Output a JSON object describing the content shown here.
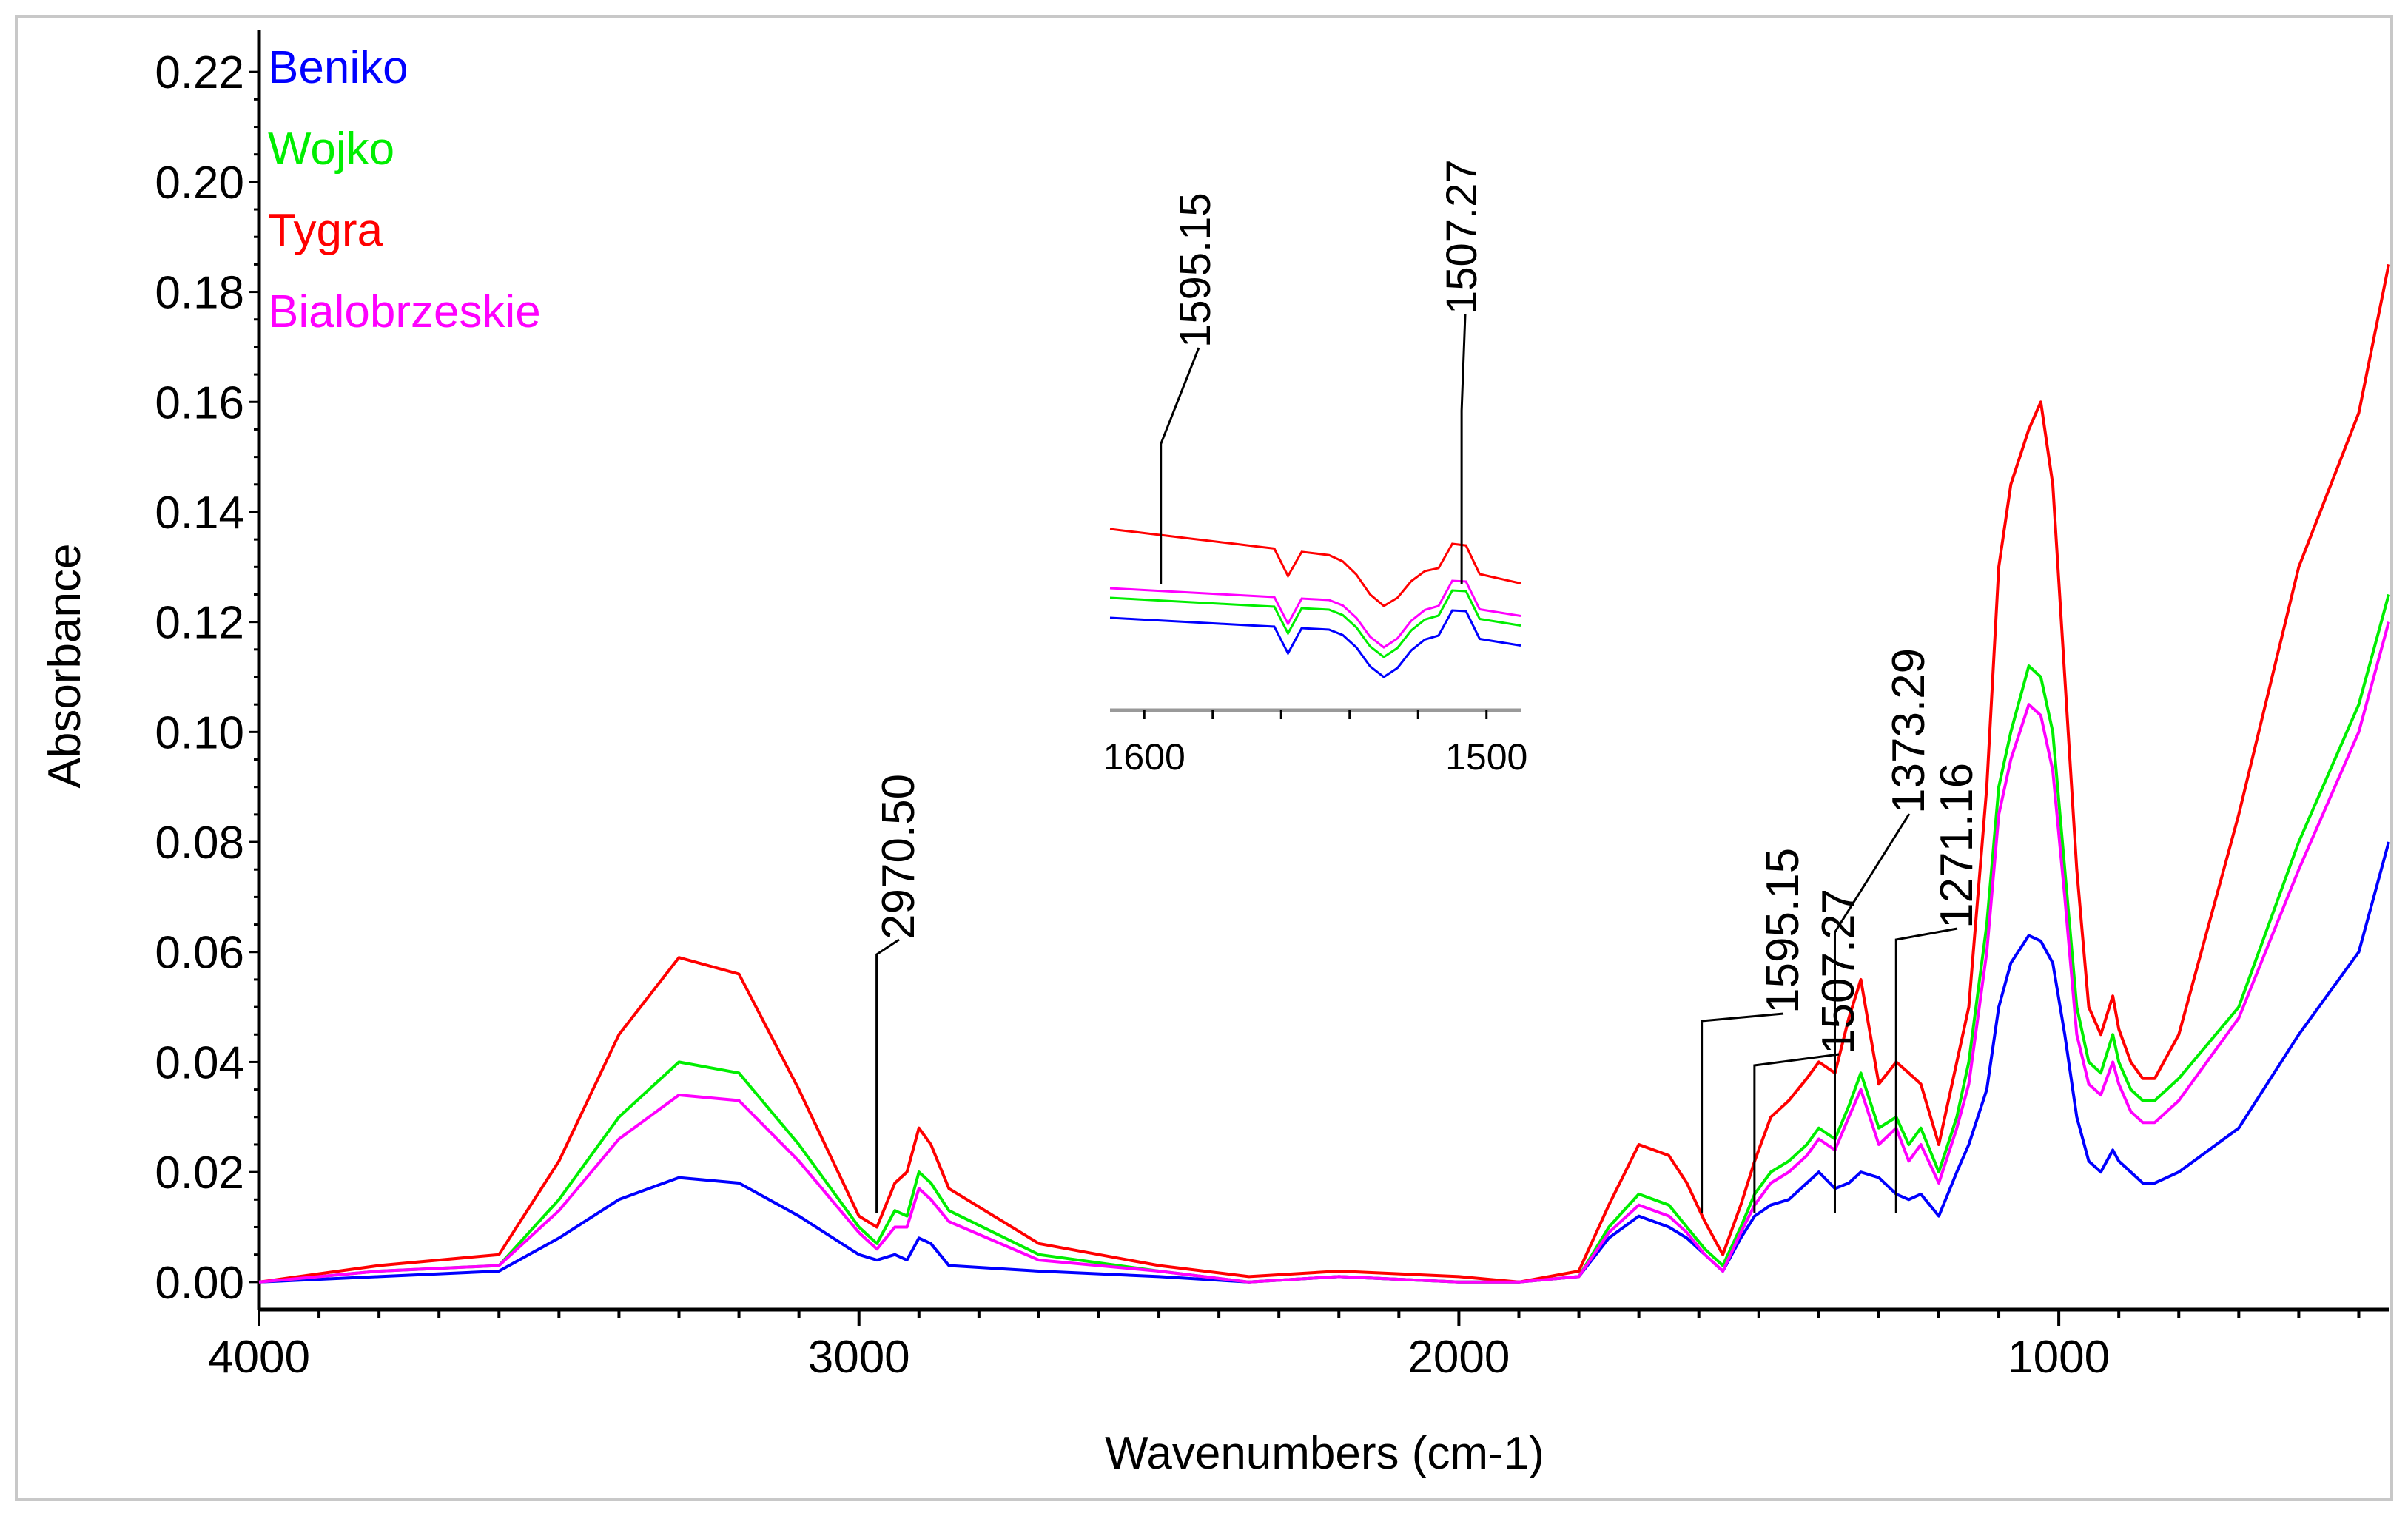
{
  "chart_data": {
    "type": "line",
    "title": "",
    "xlabel": "Wavenumbers (cm-1)",
    "ylabel": "Absorbance",
    "xlim": [
      4000,
      450
    ],
    "ylim": [
      -0.005,
      0.225
    ],
    "x_ticks": [
      4000,
      3000,
      2000,
      1000
    ],
    "x_tick_labels": [
      "4000",
      "3000",
      "2000",
      "1000"
    ],
    "y_ticks": [
      0.0,
      0.02,
      0.04,
      0.06,
      0.08,
      0.1,
      0.12,
      0.14,
      0.16,
      0.18,
      0.2,
      0.22
    ],
    "y_tick_labels": [
      "0.00",
      "0.02",
      "0.04",
      "0.06",
      "0.08",
      "0.10",
      "0.12",
      "0.14",
      "0.16",
      "0.18",
      "0.20",
      "0.22"
    ],
    "legend_position": "top-left",
    "series": [
      {
        "name": "Beniko",
        "color": "#0000ff",
        "x": [
          4000,
          3800,
          3600,
          3500,
          3400,
          3300,
          3200,
          3100,
          3000,
          2970,
          2940,
          2920,
          2900,
          2880,
          2850,
          2700,
          2500,
          2350,
          2200,
          2000,
          1900,
          1800,
          1750,
          1700,
          1650,
          1620,
          1590,
          1560,
          1530,
          1507,
          1480,
          1450,
          1420,
          1400,
          1373,
          1350,
          1330,
          1300,
          1271,
          1250,
          1230,
          1200,
          1170,
          1150,
          1120,
          1100,
          1080,
          1050,
          1030,
          1010,
          990,
          970,
          950,
          930,
          910,
          900,
          880,
          860,
          840,
          800,
          700,
          600,
          500,
          450
        ],
        "y": [
          0.0,
          0.001,
          0.002,
          0.008,
          0.015,
          0.019,
          0.018,
          0.012,
          0.005,
          0.004,
          0.005,
          0.004,
          0.008,
          0.007,
          0.003,
          0.002,
          0.001,
          0.0,
          0.001,
          0.0,
          0.0,
          0.001,
          0.008,
          0.012,
          0.01,
          0.008,
          0.005,
          0.002,
          0.008,
          0.012,
          0.014,
          0.015,
          0.018,
          0.02,
          0.017,
          0.018,
          0.02,
          0.019,
          0.016,
          0.015,
          0.016,
          0.012,
          0.02,
          0.025,
          0.035,
          0.05,
          0.058,
          0.063,
          0.062,
          0.058,
          0.045,
          0.03,
          0.022,
          0.02,
          0.024,
          0.022,
          0.02,
          0.018,
          0.018,
          0.02,
          0.028,
          0.045,
          0.06,
          0.08
        ]
      },
      {
        "name": "Wojko",
        "color": "#00ee00",
        "x": [
          4000,
          3800,
          3600,
          3500,
          3400,
          3300,
          3200,
          3100,
          3000,
          2970,
          2940,
          2920,
          2900,
          2880,
          2850,
          2700,
          2500,
          2350,
          2200,
          2000,
          1900,
          1800,
          1750,
          1700,
          1650,
          1620,
          1590,
          1560,
          1530,
          1507,
          1480,
          1450,
          1420,
          1400,
          1373,
          1350,
          1330,
          1300,
          1271,
          1250,
          1230,
          1200,
          1170,
          1150,
          1120,
          1100,
          1080,
          1050,
          1030,
          1010,
          990,
          970,
          950,
          930,
          910,
          900,
          880,
          860,
          840,
          800,
          700,
          600,
          500,
          450
        ],
        "y": [
          0.0,
          0.002,
          0.003,
          0.015,
          0.03,
          0.04,
          0.038,
          0.025,
          0.01,
          0.007,
          0.013,
          0.012,
          0.02,
          0.018,
          0.013,
          0.005,
          0.002,
          0.0,
          0.001,
          0.0,
          0.0,
          0.001,
          0.01,
          0.016,
          0.014,
          0.01,
          0.006,
          0.003,
          0.01,
          0.016,
          0.02,
          0.022,
          0.025,
          0.028,
          0.026,
          0.032,
          0.038,
          0.028,
          0.03,
          0.025,
          0.028,
          0.02,
          0.03,
          0.04,
          0.065,
          0.09,
          0.1,
          0.112,
          0.11,
          0.1,
          0.075,
          0.05,
          0.04,
          0.038,
          0.045,
          0.04,
          0.035,
          0.033,
          0.033,
          0.037,
          0.05,
          0.08,
          0.105,
          0.125
        ]
      },
      {
        "name": "Tygra",
        "color": "#ff0000",
        "x": [
          4000,
          3800,
          3600,
          3500,
          3400,
          3300,
          3200,
          3100,
          3000,
          2970,
          2940,
          2920,
          2900,
          2880,
          2850,
          2700,
          2500,
          2350,
          2200,
          2000,
          1900,
          1800,
          1750,
          1700,
          1650,
          1620,
          1590,
          1560,
          1530,
          1507,
          1480,
          1450,
          1420,
          1400,
          1373,
          1350,
          1330,
          1300,
          1271,
          1250,
          1230,
          1200,
          1170,
          1150,
          1120,
          1100,
          1080,
          1050,
          1030,
          1010,
          990,
          970,
          950,
          930,
          910,
          900,
          880,
          860,
          840,
          800,
          700,
          600,
          500,
          450
        ],
        "y": [
          0.0,
          0.003,
          0.005,
          0.022,
          0.045,
          0.059,
          0.056,
          0.035,
          0.012,
          0.01,
          0.018,
          0.02,
          0.028,
          0.025,
          0.017,
          0.007,
          0.003,
          0.001,
          0.002,
          0.001,
          0.0,
          0.002,
          0.014,
          0.025,
          0.023,
          0.018,
          0.011,
          0.005,
          0.014,
          0.022,
          0.03,
          0.033,
          0.037,
          0.04,
          0.038,
          0.048,
          0.055,
          0.036,
          0.04,
          0.038,
          0.036,
          0.025,
          0.04,
          0.05,
          0.09,
          0.13,
          0.145,
          0.155,
          0.16,
          0.145,
          0.11,
          0.075,
          0.05,
          0.045,
          0.052,
          0.046,
          0.04,
          0.037,
          0.037,
          0.045,
          0.085,
          0.13,
          0.158,
          0.185
        ]
      },
      {
        "name": "Bialobrzeskie",
        "color": "#ff00ff",
        "x": [
          4000,
          3800,
          3600,
          3500,
          3400,
          3300,
          3200,
          3100,
          3000,
          2970,
          2940,
          2920,
          2900,
          2880,
          2850,
          2700,
          2500,
          2350,
          2200,
          2000,
          1900,
          1800,
          1750,
          1700,
          1650,
          1620,
          1590,
          1560,
          1530,
          1507,
          1480,
          1450,
          1420,
          1400,
          1373,
          1350,
          1330,
          1300,
          1271,
          1250,
          1230,
          1200,
          1170,
          1150,
          1120,
          1100,
          1080,
          1050,
          1030,
          1010,
          990,
          970,
          950,
          930,
          910,
          900,
          880,
          860,
          840,
          800,
          700,
          600,
          500,
          450
        ],
        "y": [
          0.0,
          0.002,
          0.003,
          0.013,
          0.026,
          0.034,
          0.033,
          0.022,
          0.009,
          0.006,
          0.01,
          0.01,
          0.017,
          0.015,
          0.011,
          0.004,
          0.002,
          0.0,
          0.001,
          0.0,
          0.0,
          0.001,
          0.009,
          0.014,
          0.012,
          0.009,
          0.005,
          0.002,
          0.009,
          0.014,
          0.018,
          0.02,
          0.023,
          0.026,
          0.024,
          0.03,
          0.035,
          0.025,
          0.028,
          0.022,
          0.025,
          0.018,
          0.028,
          0.036,
          0.06,
          0.085,
          0.095,
          0.105,
          0.103,
          0.093,
          0.07,
          0.045,
          0.036,
          0.034,
          0.04,
          0.036,
          0.031,
          0.029,
          0.029,
          0.033,
          0.048,
          0.075,
          0.1,
          0.12
        ]
      }
    ],
    "annotations": [
      {
        "label": "2970.50",
        "x": 2970.5
      },
      {
        "label": "1595.15",
        "x": 1595.15
      },
      {
        "label": "1507.27",
        "x": 1507.27
      },
      {
        "label": "1373.29",
        "x": 1373.29
      },
      {
        "label": "1271.16",
        "x": 1271.16
      }
    ],
    "inset": {
      "xlim": [
        1610,
        1490
      ],
      "x_ticks": [
        1600,
        1500
      ],
      "x_tick_labels": [
        "1600",
        "1500"
      ],
      "annotations": [
        {
          "label": "1595.15",
          "x": 1595.15
        },
        {
          "label": "1507.27",
          "x": 1507.27
        }
      ]
    }
  }
}
